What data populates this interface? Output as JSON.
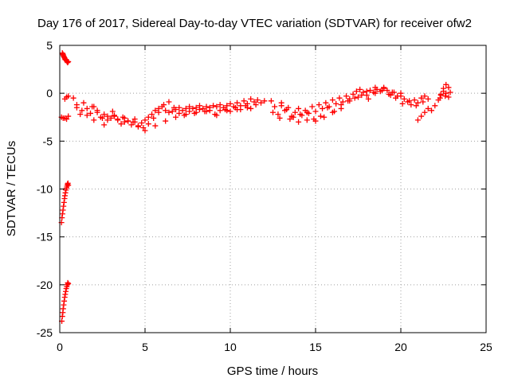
{
  "chart_data": {
    "type": "scatter",
    "title": "Day 176 of 2017, Sidereal Day-to-day VTEC variation (SDTVAR) for receiver ofw2",
    "xlabel": "GPS time / hours",
    "ylabel": "SDTVAR / TECUs",
    "xlim": [
      0,
      25
    ],
    "ylim": [
      -25,
      5
    ],
    "xticks": [
      0,
      5,
      10,
      15,
      20,
      25
    ],
    "yticks": [
      5,
      0,
      -5,
      -10,
      -15,
      -20,
      -25
    ],
    "x_tick_labels": [
      "0",
      "5",
      "10",
      "15",
      "20",
      "25"
    ],
    "y_tick_labels": [
      "5",
      "0",
      "-5",
      "-10",
      "-15",
      "-20",
      "-25"
    ],
    "grid": true,
    "marker": "+",
    "color": "#ff0000",
    "series": [
      {
        "name": "SDTVAR",
        "x": [
          0.15,
          0.18,
          0.2,
          0.22,
          0.25,
          0.28,
          0.3,
          0.33,
          0.36,
          0.4,
          0.43,
          0.46,
          0.5,
          0.1,
          0.13,
          0.16,
          0.19,
          0.22,
          0.25,
          0.28,
          0.3,
          0.33,
          0.36,
          0.39,
          0.42,
          0.45,
          0.48,
          0.5,
          0.12,
          0.15,
          0.18,
          0.2,
          0.23,
          0.26,
          0.29,
          0.32,
          0.35,
          0.38,
          0.41,
          0.44,
          0.47,
          0.5,
          0.1,
          0.2,
          0.3,
          0.4,
          0.5,
          0.3,
          0.4,
          0.5,
          0.8,
          1.0,
          1.2,
          1.4,
          1.6,
          1.8,
          2.0,
          2.2,
          2.4,
          2.6,
          2.8,
          3.0,
          3.2,
          3.4,
          3.6,
          3.8,
          4.0,
          4.2,
          4.4,
          4.6,
          4.8,
          5.0,
          5.2,
          5.4,
          5.6,
          5.8,
          6.0,
          6.2,
          6.4,
          6.6,
          6.8,
          7.0,
          7.2,
          7.4,
          7.6,
          7.8,
          8.0,
          8.2,
          8.4,
          8.6,
          8.8,
          9.0,
          9.2,
          9.4,
          9.6,
          9.8,
          10.0,
          10.2,
          10.4,
          10.6,
          10.8,
          11.0,
          11.2,
          11.4,
          11.6,
          11.8,
          12.0,
          1.0,
          1.3,
          1.6,
          1.9,
          2.2,
          2.5,
          2.8,
          3.1,
          3.4,
          3.7,
          4.0,
          4.3,
          4.6,
          4.9,
          5.2,
          5.5,
          5.8,
          6.1,
          6.4,
          6.7,
          7.0,
          7.3,
          7.6,
          7.9,
          8.2,
          8.5,
          8.8,
          9.1,
          9.4,
          9.7,
          10.0,
          10.3,
          10.6,
          10.9,
          11.2,
          11.5,
          2.0,
          2.6,
          3.2,
          3.8,
          4.4,
          5.0,
          5.6,
          6.2,
          6.8,
          7.4,
          8.0,
          8.6,
          9.2,
          9.8,
          10.4,
          11.0,
          12.4,
          12.6,
          12.8,
          13.0,
          13.2,
          13.4,
          13.6,
          13.8,
          14.0,
          14.2,
          14.4,
          14.6,
          14.8,
          15.0,
          15.2,
          15.4,
          15.6,
          15.8,
          16.0,
          16.2,
          16.4,
          16.6,
          16.8,
          17.0,
          17.2,
          17.4,
          17.6,
          17.8,
          18.0,
          18.2,
          18.4,
          18.6,
          18.8,
          19.0,
          19.2,
          19.4,
          19.6,
          19.8,
          20.0,
          20.2,
          20.4,
          20.6,
          20.8,
          21.0,
          21.2,
          21.4,
          21.6,
          12.5,
          12.9,
          13.3,
          13.7,
          14.1,
          14.5,
          14.9,
          15.3,
          15.7,
          16.1,
          16.5,
          16.9,
          17.3,
          17.7,
          18.1,
          18.5,
          18.9,
          19.3,
          19.7,
          20.1,
          20.5,
          20.9,
          21.3,
          13.0,
          13.5,
          14.0,
          14.5,
          15.0,
          15.5,
          16.0,
          16.5,
          17.0,
          17.5,
          18.0,
          18.5,
          19.0,
          19.5,
          20.0,
          21.0,
          21.2,
          21.4,
          21.6,
          21.8,
          22.0,
          22.2,
          22.35,
          22.5,
          22.65,
          22.8,
          22.35,
          22.5,
          22.65,
          22.8,
          22.9,
          22.3,
          22.6
        ],
        "y": [
          4.2,
          4.1,
          4.0,
          3.9,
          3.8,
          3.7,
          3.6,
          3.5,
          3.5,
          3.4,
          3.3,
          3.2,
          3.3,
          -13.5,
          -13.0,
          -12.6,
          -12.2,
          -11.8,
          -11.4,
          -11.0,
          -10.7,
          -10.4,
          -10.1,
          -9.9,
          -9.7,
          -9.5,
          -9.4,
          -9.6,
          -23.8,
          -23.3,
          -22.9,
          -22.5,
          -22.1,
          -21.7,
          -21.3,
          -21.0,
          -20.7,
          -20.4,
          -20.2,
          -20.0,
          -19.8,
          -19.9,
          -2.5,
          -2.6,
          -0.6,
          -0.4,
          -0.3,
          -2.6,
          -2.7,
          -2.4,
          -0.5,
          -1.2,
          -2.2,
          -1.0,
          -1.6,
          -2.1,
          -1.4,
          -1.8,
          -2.5,
          -2.2,
          -2.8,
          -2.6,
          -2.3,
          -2.8,
          -3.2,
          -2.6,
          -2.9,
          -3.3,
          -3.0,
          -3.5,
          -3.1,
          -2.8,
          -2.5,
          -2.2,
          -1.8,
          -1.6,
          -1.4,
          -1.8,
          -2.0,
          -1.9,
          -1.7,
          -1.5,
          -1.8,
          -1.6,
          -1.4,
          -1.6,
          -1.5,
          -1.3,
          -1.6,
          -1.4,
          -1.5,
          -1.3,
          -1.4,
          -1.2,
          -1.5,
          -1.3,
          -1.1,
          -1.4,
          -1.0,
          -1.3,
          -0.8,
          -1.1,
          -0.6,
          -0.9,
          -0.7,
          -1.0,
          -0.8,
          -1.5,
          -1.8,
          -2.3,
          -1.4,
          -2.0,
          -2.6,
          -2.4,
          -1.9,
          -2.7,
          -2.5,
          -2.9,
          -3.0,
          -3.4,
          -3.6,
          -3.2,
          -2.6,
          -2.0,
          -1.2,
          -0.9,
          -1.5,
          -2.1,
          -2.3,
          -1.9,
          -2.1,
          -1.7,
          -1.9,
          -1.8,
          -2.2,
          -1.8,
          -1.7,
          -1.9,
          -1.5,
          -1.7,
          -1.3,
          -1.6,
          -1.2,
          -2.8,
          -3.3,
          -2.4,
          -3.0,
          -2.7,
          -3.9,
          -3.4,
          -2.9,
          -2.5,
          -2.2,
          -2.0,
          -1.9,
          -2.3,
          -1.8,
          -1.7,
          -1.5,
          -0.8,
          -1.4,
          -2.2,
          -1.0,
          -1.8,
          -1.5,
          -2.4,
          -2.0,
          -1.6,
          -2.3,
          -1.8,
          -2.1,
          -1.4,
          -1.9,
          -1.2,
          -1.6,
          -1.0,
          -1.4,
          -0.7,
          -1.1,
          -0.5,
          -0.9,
          -0.3,
          -0.6,
          -0.1,
          0.2,
          0.4,
          0.1,
          -0.2,
          0.3,
          0.1,
          0.4,
          0.2,
          0.6,
          0.3,
          -0.2,
          0.1,
          -0.3,
          0.0,
          -0.6,
          -0.9,
          -1.2,
          -0.7,
          -1.0,
          -0.5,
          -0.3,
          -0.6,
          -2.0,
          -2.6,
          -1.7,
          -2.5,
          -2.2,
          -2.0,
          -2.7,
          -2.4,
          -1.5,
          -1.9,
          -1.2,
          -0.8,
          -0.5,
          -0.2,
          -0.6,
          0.0,
          0.3,
          -0.1,
          -0.5,
          -1.1,
          -0.8,
          -1.3,
          -0.9,
          -1.3,
          -2.7,
          -3.0,
          -2.8,
          -2.9,
          -2.5,
          -2.0,
          -1.6,
          -0.8,
          -0.4,
          0.2,
          0.6,
          0.5,
          0.1,
          -0.3,
          -2.8,
          -2.4,
          -2.0,
          -1.6,
          -1.8,
          -1.3,
          -0.7,
          -0.2,
          0.5,
          0.9,
          0.6,
          -0.1,
          0.2,
          0.0,
          -0.4,
          0.1,
          -0.5,
          -0.3
        ]
      }
    ]
  }
}
